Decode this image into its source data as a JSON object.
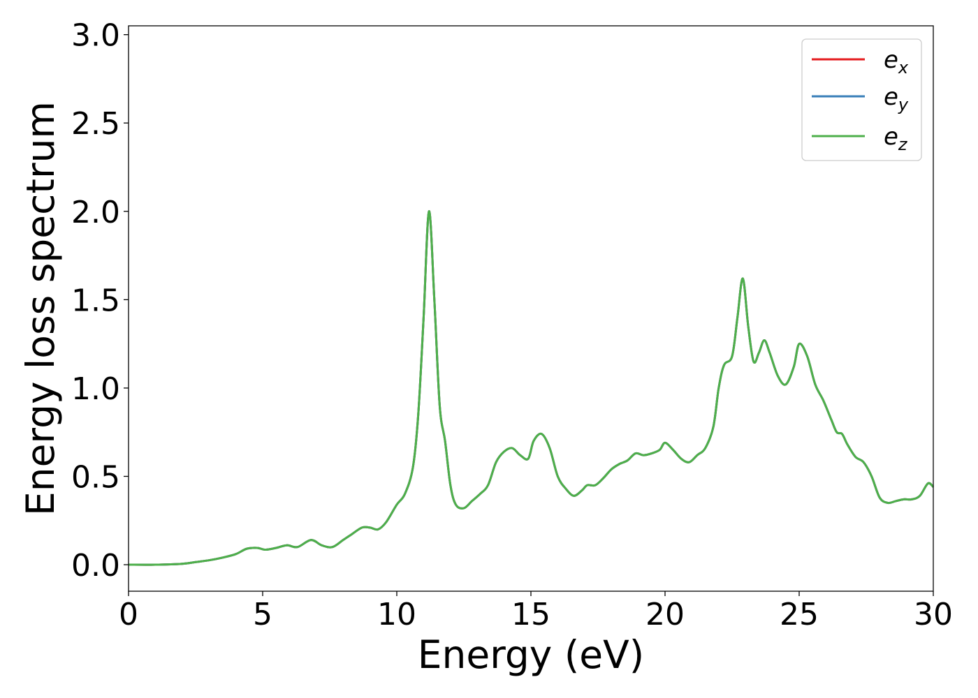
{
  "chart_data": {
    "type": "line",
    "title": "",
    "xlabel": "Energy (eV)",
    "ylabel": "Energy loss spectrum",
    "xlim": [
      0,
      30
    ],
    "ylim": [
      -0.15,
      3.05
    ],
    "xticks": [
      0,
      5,
      10,
      15,
      20,
      25,
      30
    ],
    "xtick_labels": [
      "0",
      "5",
      "10",
      "15",
      "20",
      "25",
      "30"
    ],
    "yticks": [
      0.0,
      0.5,
      1.0,
      1.5,
      2.0,
      2.5,
      3.0
    ],
    "ytick_labels": [
      "0.0",
      "0.5",
      "1.0",
      "1.5",
      "2.0",
      "2.5",
      "3.0"
    ],
    "grid": false,
    "legend_position": "top-right",
    "x": [
      0,
      1,
      2,
      2.5,
      3,
      3.5,
      4,
      4.4,
      4.8,
      5.1,
      5.5,
      5.9,
      6.3,
      6.8,
      7.2,
      7.6,
      8.0,
      8.3,
      8.7,
      9.0,
      9.3,
      9.6,
      10.0,
      10.3,
      10.6,
      10.8,
      11.0,
      11.2,
      11.4,
      11.6,
      11.8,
      12.0,
      12.2,
      12.5,
      12.8,
      13.1,
      13.4,
      13.7,
      14.0,
      14.3,
      14.6,
      14.9,
      15.1,
      15.4,
      15.7,
      16.0,
      16.3,
      16.6,
      16.9,
      17.1,
      17.4,
      17.7,
      18.0,
      18.3,
      18.6,
      18.9,
      19.2,
      19.5,
      19.8,
      20.0,
      20.3,
      20.6,
      20.9,
      21.2,
      21.5,
      21.8,
      22.0,
      22.2,
      22.5,
      22.7,
      22.9,
      23.1,
      23.3,
      23.5,
      23.7,
      23.9,
      24.2,
      24.5,
      24.8,
      25.0,
      25.3,
      25.6,
      25.9,
      26.2,
      26.4,
      26.6,
      26.8,
      27.1,
      27.4,
      27.7,
      28.0,
      28.3,
      28.6,
      28.9,
      29.2,
      29.5,
      29.8,
      30.0
    ],
    "series": [
      {
        "name": "e_x",
        "color": "#e41a1c",
        "values": [
          0.0,
          0.0,
          0.005,
          0.015,
          0.025,
          0.04,
          0.06,
          0.09,
          0.095,
          0.085,
          0.095,
          0.11,
          0.1,
          0.14,
          0.11,
          0.1,
          0.14,
          0.17,
          0.21,
          0.21,
          0.2,
          0.24,
          0.34,
          0.4,
          0.55,
          0.85,
          1.4,
          2.0,
          1.5,
          0.9,
          0.7,
          0.45,
          0.34,
          0.32,
          0.36,
          0.4,
          0.45,
          0.58,
          0.64,
          0.66,
          0.62,
          0.6,
          0.7,
          0.74,
          0.66,
          0.5,
          0.43,
          0.39,
          0.42,
          0.45,
          0.45,
          0.49,
          0.54,
          0.57,
          0.59,
          0.63,
          0.62,
          0.63,
          0.65,
          0.69,
          0.65,
          0.6,
          0.58,
          0.62,
          0.66,
          0.78,
          1.0,
          1.13,
          1.18,
          1.4,
          1.62,
          1.35,
          1.15,
          1.2,
          1.27,
          1.2,
          1.07,
          1.02,
          1.12,
          1.25,
          1.18,
          1.02,
          0.93,
          0.82,
          0.75,
          0.74,
          0.68,
          0.61,
          0.58,
          0.5,
          0.38,
          0.35,
          0.36,
          0.37,
          0.37,
          0.39,
          0.46,
          0.44
        ]
      },
      {
        "name": "e_y",
        "color": "#377eb8",
        "values": [
          0.0,
          0.0,
          0.005,
          0.015,
          0.025,
          0.04,
          0.06,
          0.09,
          0.095,
          0.085,
          0.095,
          0.11,
          0.1,
          0.14,
          0.11,
          0.1,
          0.14,
          0.17,
          0.21,
          0.21,
          0.2,
          0.24,
          0.34,
          0.4,
          0.55,
          0.85,
          1.4,
          2.0,
          1.5,
          0.9,
          0.7,
          0.45,
          0.34,
          0.32,
          0.36,
          0.4,
          0.45,
          0.58,
          0.64,
          0.66,
          0.62,
          0.6,
          0.7,
          0.74,
          0.66,
          0.5,
          0.43,
          0.39,
          0.42,
          0.45,
          0.45,
          0.49,
          0.54,
          0.57,
          0.59,
          0.63,
          0.62,
          0.63,
          0.65,
          0.69,
          0.65,
          0.6,
          0.58,
          0.62,
          0.66,
          0.78,
          1.0,
          1.13,
          1.18,
          1.4,
          1.62,
          1.35,
          1.15,
          1.2,
          1.27,
          1.2,
          1.07,
          1.02,
          1.12,
          1.25,
          1.18,
          1.02,
          0.93,
          0.82,
          0.75,
          0.74,
          0.68,
          0.61,
          0.58,
          0.5,
          0.38,
          0.35,
          0.36,
          0.37,
          0.37,
          0.39,
          0.46,
          0.44
        ]
      },
      {
        "name": "e_z",
        "color": "#4daf4a",
        "values": [
          0.0,
          0.0,
          0.005,
          0.015,
          0.025,
          0.04,
          0.06,
          0.09,
          0.095,
          0.085,
          0.095,
          0.11,
          0.1,
          0.14,
          0.11,
          0.1,
          0.14,
          0.17,
          0.21,
          0.21,
          0.2,
          0.24,
          0.34,
          0.4,
          0.55,
          0.85,
          1.4,
          2.0,
          1.5,
          0.9,
          0.7,
          0.45,
          0.34,
          0.32,
          0.36,
          0.4,
          0.45,
          0.58,
          0.64,
          0.66,
          0.62,
          0.6,
          0.7,
          0.74,
          0.66,
          0.5,
          0.43,
          0.39,
          0.42,
          0.45,
          0.45,
          0.49,
          0.54,
          0.57,
          0.59,
          0.63,
          0.62,
          0.63,
          0.65,
          0.69,
          0.65,
          0.6,
          0.58,
          0.62,
          0.66,
          0.78,
          1.0,
          1.13,
          1.18,
          1.4,
          1.62,
          1.35,
          1.15,
          1.2,
          1.27,
          1.2,
          1.07,
          1.02,
          1.12,
          1.25,
          1.18,
          1.02,
          0.93,
          0.82,
          0.75,
          0.74,
          0.68,
          0.61,
          0.58,
          0.5,
          0.38,
          0.35,
          0.36,
          0.37,
          0.37,
          0.39,
          0.46,
          0.44
        ]
      }
    ],
    "legend": [
      {
        "base": "e",
        "sub": "x"
      },
      {
        "base": "e",
        "sub": "y"
      },
      {
        "base": "e",
        "sub": "z"
      }
    ]
  }
}
